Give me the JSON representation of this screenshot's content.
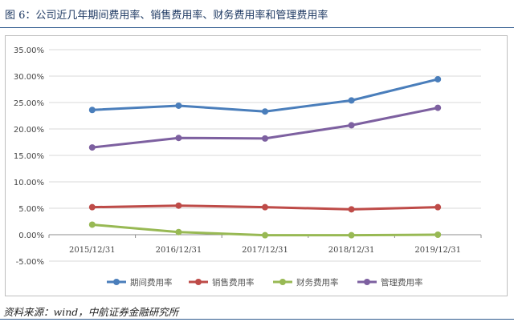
{
  "figure": {
    "title": "图 6：公司近几年期间费用率、销售费用率、财务费用率和管理费用率",
    "source": "资料来源：wind，中航证券金融研究所"
  },
  "chart_data": {
    "type": "line",
    "categories": [
      "2015/12/31",
      "2016/12/31",
      "2017/12/31",
      "2018/12/31",
      "2019/12/31"
    ],
    "yticks": [
      "35.00%",
      "30.00%",
      "25.00%",
      "20.00%",
      "15.00%",
      "10.00%",
      "5.00%",
      "0.00%",
      "-5.00%"
    ],
    "ylim": [
      -5,
      35
    ],
    "grid": true,
    "legend_position": "bottom",
    "series": [
      {
        "name": "期间费用率",
        "color": "#4a7ebb",
        "values": [
          23.6,
          24.4,
          23.3,
          25.4,
          29.4
        ]
      },
      {
        "name": "销售费用率",
        "color": "#be4b48",
        "values": [
          5.2,
          5.5,
          5.2,
          4.8,
          5.2
        ]
      },
      {
        "name": "财务费用率",
        "color": "#98b954",
        "values": [
          1.9,
          0.5,
          -0.1,
          -0.1,
          0.0
        ]
      },
      {
        "name": "管理费用率",
        "color": "#7d60a0",
        "values": [
          16.5,
          18.3,
          18.2,
          20.7,
          24.0
        ]
      }
    ]
  }
}
